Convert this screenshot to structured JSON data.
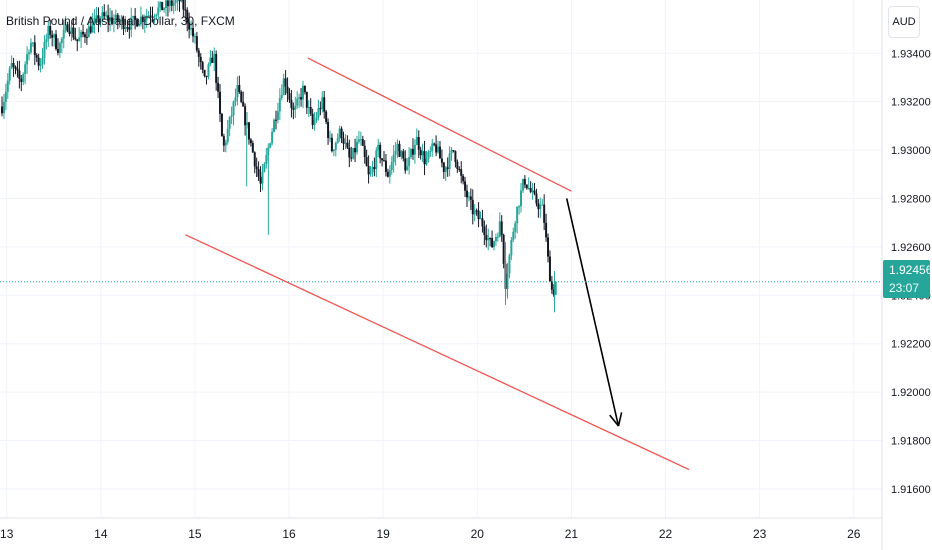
{
  "header": {
    "title": "British Pound / Australian Dollar, 30, FXCM",
    "currency_button": "AUD"
  },
  "price_tag": {
    "price": "1.92456",
    "countdown": "23:07"
  },
  "colors": {
    "up": "#26a69a",
    "down": "#131722",
    "channel": "#f05350",
    "arrow": "#000000",
    "grid": "#f0f3fa",
    "text": "#131722"
  },
  "chart_data": {
    "type": "candlestick",
    "title": "British Pound / Australian Dollar, 30, FXCM",
    "y_ticks": [
      "1.91600",
      "1.91800",
      "1.92000",
      "1.92200",
      "1.92400",
      "1.92600",
      "1.92800",
      "1.93000",
      "1.93200",
      "1.93400"
    ],
    "ylim": [
      1.9148,
      1.9362
    ],
    "x_ticks": [
      {
        "label": "13",
        "day": 13
      },
      {
        "label": "14",
        "day": 14
      },
      {
        "label": "15",
        "day": 15
      },
      {
        "label": "16",
        "day": 16
      },
      {
        "label": "19",
        "day": 17
      },
      {
        "label": "20",
        "day": 18
      },
      {
        "label": "21",
        "day": 19
      },
      {
        "label": "22",
        "day": 20
      },
      {
        "label": "23",
        "day": 21
      },
      {
        "label": "26",
        "day": 22
      }
    ],
    "xlim": [
      12.95,
      22.3
    ],
    "last_price": 1.92456,
    "price_path": [
      [
        12.95,
        1.9318
      ],
      [
        13.05,
        1.9335
      ],
      [
        13.15,
        1.9328
      ],
      [
        13.25,
        1.9345
      ],
      [
        13.35,
        1.9335
      ],
      [
        13.45,
        1.935
      ],
      [
        13.55,
        1.9342
      ],
      [
        13.65,
        1.9352
      ],
      [
        13.75,
        1.9345
      ],
      [
        14.0,
        1.9355
      ],
      [
        14.3,
        1.9352
      ],
      [
        14.6,
        1.9358
      ],
      [
        14.85,
        1.9362
      ],
      [
        15.0,
        1.9345
      ],
      [
        15.1,
        1.9328
      ],
      [
        15.2,
        1.934
      ],
      [
        15.3,
        1.93
      ],
      [
        15.45,
        1.9325
      ],
      [
        15.55,
        1.931
      ],
      [
        15.7,
        1.9285
      ],
      [
        15.8,
        1.9305
      ],
      [
        15.95,
        1.933
      ],
      [
        16.05,
        1.9315
      ],
      [
        16.15,
        1.9325
      ],
      [
        16.25,
        1.931
      ],
      [
        16.35,
        1.932
      ],
      [
        16.45,
        1.93
      ],
      [
        16.55,
        1.9308
      ],
      [
        16.65,
        1.9295
      ],
      [
        16.75,
        1.9305
      ],
      [
        16.85,
        1.9288
      ],
      [
        16.95,
        1.93
      ],
      [
        17.05,
        1.929
      ],
      [
        17.15,
        1.9302
      ],
      [
        17.25,
        1.9292
      ],
      [
        17.35,
        1.9305
      ],
      [
        17.45,
        1.9295
      ],
      [
        17.55,
        1.9302
      ],
      [
        17.65,
        1.9292
      ],
      [
        17.75,
        1.93
      ],
      [
        17.85,
        1.9285
      ],
      [
        17.95,
        1.9275
      ],
      [
        18.05,
        1.927
      ],
      [
        18.15,
        1.926
      ],
      [
        18.25,
        1.927
      ],
      [
        18.3,
        1.9245
      ],
      [
        18.4,
        1.9272
      ],
      [
        18.5,
        1.9288
      ],
      [
        18.6,
        1.928
      ],
      [
        18.7,
        1.9275
      ],
      [
        18.75,
        1.9255
      ],
      [
        18.8,
        1.924
      ],
      [
        18.85,
        1.9248
      ]
    ],
    "annotations": [
      {
        "type": "trendline",
        "name": "upper-channel",
        "from": [
          16.2,
          1.9338
        ],
        "to": [
          19.0,
          1.9283
        ]
      },
      {
        "type": "trendline",
        "name": "lower-channel",
        "from": [
          14.9,
          1.9265
        ],
        "to": [
          20.25,
          1.9168
        ]
      },
      {
        "type": "arrow",
        "name": "projection",
        "from": [
          18.95,
          1.928
        ],
        "to": [
          19.5,
          1.9186
        ]
      }
    ]
  }
}
